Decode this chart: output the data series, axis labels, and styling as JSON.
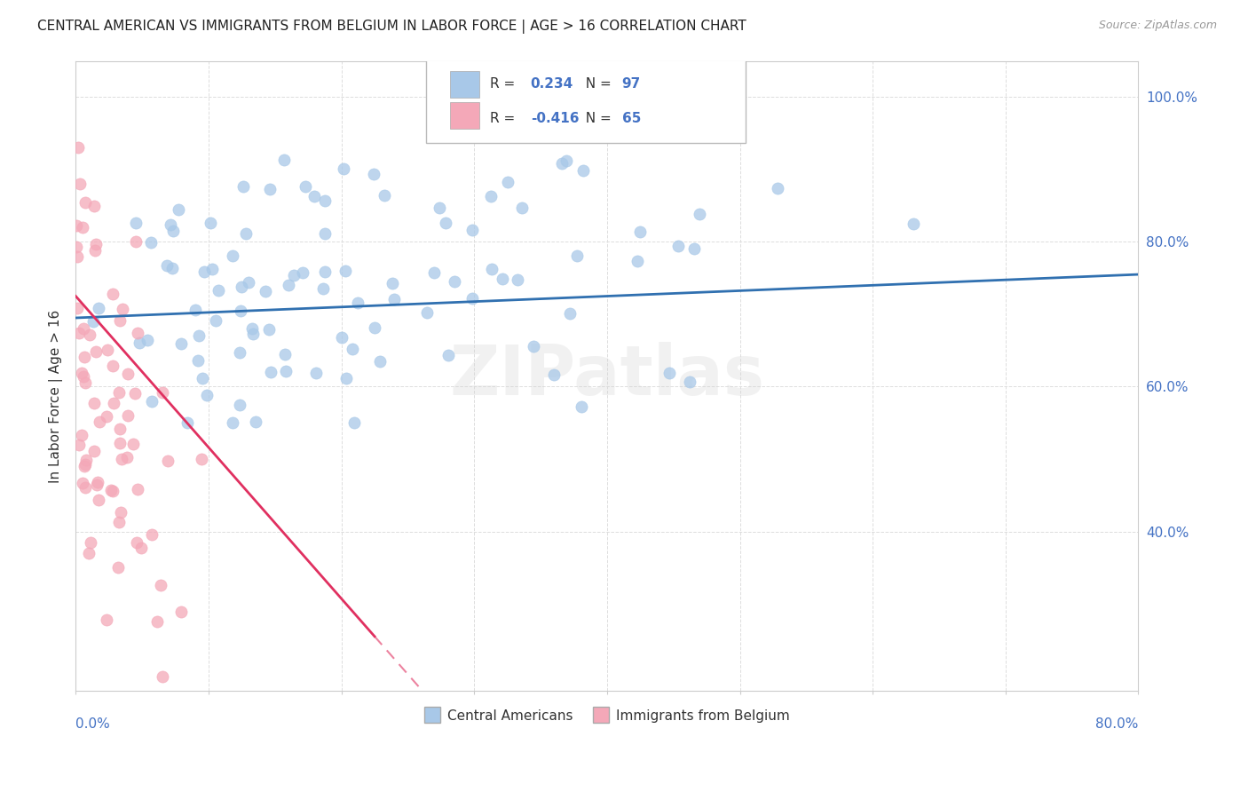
{
  "title": "CENTRAL AMERICAN VS IMMIGRANTS FROM BELGIUM IN LABOR FORCE | AGE > 16 CORRELATION CHART",
  "source": "Source: ZipAtlas.com",
  "ylabel": "In Labor Force | Age > 16",
  "xmin": 0.0,
  "xmax": 0.8,
  "ymin": 0.18,
  "ymax": 1.05,
  "blue_color": "#a8c8e8",
  "pink_color": "#f4a8b8",
  "blue_line_color": "#3070b0",
  "pink_line_color": "#e03060",
  "blue_trend_y_start": 0.695,
  "blue_trend_y_end": 0.755,
  "pink_trend_y_start": 0.725,
  "pink_trend_y_end": 0.255,
  "pink_trend_x_end": 0.225,
  "watermark": "ZIPatlas",
  "background_color": "#ffffff",
  "grid_color": "#dddddd",
  "tick_color": "#4472c4",
  "label_dark": "#333333",
  "label_blue": "#4472c4",
  "r1_val": "0.234",
  "n1_val": "97",
  "r2_val": "-0.416",
  "n2_val": "65",
  "legend1_label": "Central Americans",
  "legend2_label": "Immigrants from Belgium"
}
